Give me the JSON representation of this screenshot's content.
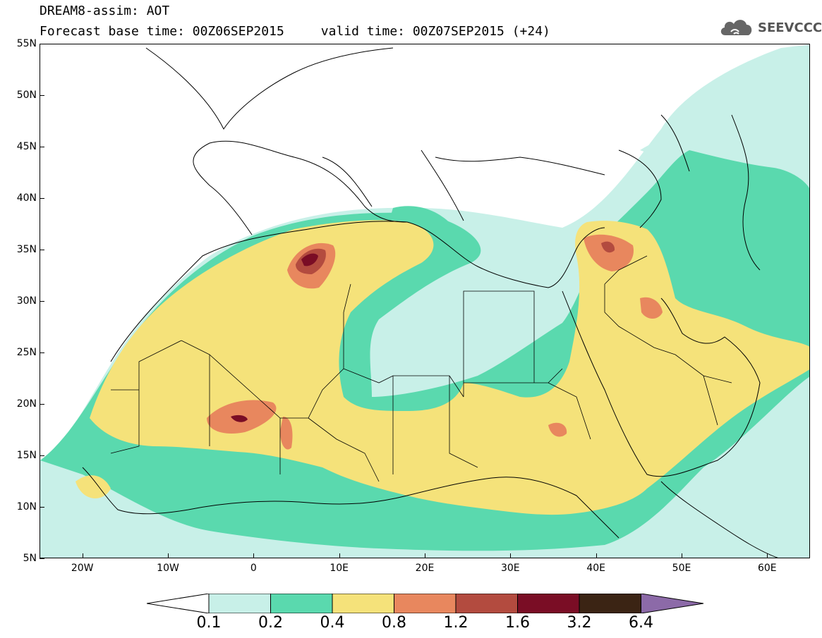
{
  "header": {
    "title_line1": "DREAM8-assim: AOT",
    "base_time": "Forecast base time: 00Z06SEP2015",
    "valid_time": "valid time: 00Z07SEP2015 (+24)"
  },
  "logo": {
    "text": "SEEVCCC",
    "icon": "cloud-icon"
  },
  "map": {
    "latitude_labels": [
      "55N",
      "50N",
      "45N",
      "40N",
      "35N",
      "30N",
      "25N",
      "20N",
      "15N",
      "10N",
      "5N"
    ],
    "latitude_values": [
      55,
      50,
      45,
      40,
      35,
      30,
      25,
      20,
      15,
      10,
      5
    ],
    "longitude_labels": [
      "20W",
      "10W",
      "0",
      "10E",
      "20E",
      "30E",
      "40E",
      "50E",
      "60E"
    ],
    "longitude_values": [
      -20,
      -10,
      0,
      10,
      20,
      30,
      40,
      50,
      60
    ],
    "lon_range": [
      -25,
      65
    ],
    "lat_range": [
      5,
      55
    ],
    "grid": false
  },
  "legend": {
    "levels": [
      "0.1",
      "0.2",
      "0.4",
      "0.8",
      "1.2",
      "1.6",
      "3.2",
      "6.4"
    ],
    "colors": [
      "#ffffff",
      "#c8f0e8",
      "#5ad9ae",
      "#f5e27a",
      "#e8875e",
      "#b34b3f",
      "#7a0d25",
      "#3b2414",
      "#8c6aa8"
    ]
  }
}
